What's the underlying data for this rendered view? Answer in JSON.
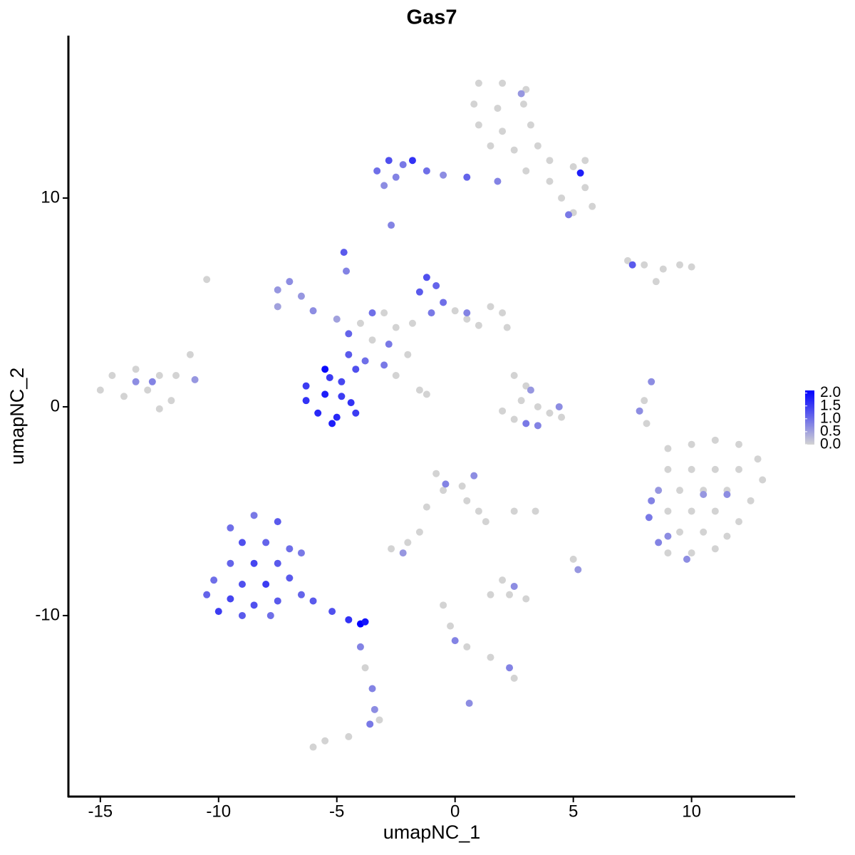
{
  "chart_data": {
    "type": "scatter",
    "title": "Gas7",
    "x_label": "umapNC_1",
    "y_label": "umapNC_2",
    "xlim": [
      -16.35,
      14.38
    ],
    "ylim": [
      -18.67,
      17.78
    ],
    "xticks": [
      -15,
      -10,
      -5,
      0,
      5,
      10
    ],
    "yticks": [
      -10,
      0,
      10
    ],
    "low_color": "#d3d3d3",
    "high_color": "#0000ff",
    "colorbar_lim": [
      0,
      2.1
    ],
    "colorbar_ticks": [
      {
        "value": 0,
        "label": "0.0"
      },
      {
        "value": 0.5,
        "label": "0.5"
      },
      {
        "value": 1,
        "label": "1.0"
      },
      {
        "value": 1.5,
        "label": "1.5"
      },
      {
        "value": 2,
        "label": "2.0"
      }
    ],
    "x": [
      1,
      2,
      3,
      0.8,
      1.8,
      2.9,
      3.2,
      1,
      2,
      1.5,
      2.5,
      3.5,
      4,
      5,
      5.5,
      3,
      4,
      4.5,
      5.5,
      5.8,
      5,
      1.8,
      2.8,
      5.3,
      4.8,
      -3.3,
      -2.8,
      -2.2,
      -1.8,
      -2.5,
      -1.2,
      -0.5,
      0.5,
      -3,
      -2.7,
      7.3,
      8,
      8.8,
      9.5,
      10,
      8.5,
      7.5,
      -15,
      -14.5,
      -14,
      -13.5,
      -13,
      -12.5,
      -12,
      -11.8,
      -11.2,
      -12.5,
      -13.5,
      -12.8,
      -11,
      -10.5,
      -7.5,
      -7,
      -6.5,
      -7.5,
      -6,
      -5,
      -4,
      -3,
      -2.5,
      -3.5,
      -2,
      -1.8,
      0,
      0.5,
      1.5,
      2,
      2.2,
      1,
      -2.5,
      -1.5,
      -1.2,
      -3,
      -3.5,
      -4.5,
      -2.8,
      -1.2,
      -1.5,
      -0.8,
      -0.5,
      -1,
      0.5,
      -4.7,
      -4.6,
      -4.5,
      -4.2,
      -3.8,
      -6.3,
      -6.3,
      -5.8,
      -5.5,
      -5,
      -4.8,
      -4.4,
      -5.3,
      -4.8,
      -5.5,
      -4.2,
      -5.2,
      2.5,
      3,
      2.8,
      2,
      3.5,
      4,
      4.4,
      3,
      3.5,
      2.5,
      3.2,
      4.5,
      8.3,
      8,
      7.8,
      8.1,
      9,
      10,
      11,
      12,
      12.8,
      9,
      10,
      11,
      12,
      13,
      9.5,
      10.5,
      11.5,
      12.5,
      9,
      10,
      11,
      12,
      9.5,
      10.5,
      11.5,
      9,
      10,
      11,
      8.3,
      8.2,
      8.6,
      8.6,
      9,
      10.5,
      11.5,
      9.8,
      -0.8,
      -0.5,
      0.3,
      0.5,
      1,
      1.3,
      0.8,
      -0.4,
      -1.5,
      -2,
      -2.7,
      -2.2,
      2.5,
      -1.2,
      -9.5,
      -8.5,
      -7.5,
      -9,
      -8,
      -7,
      -9.5,
      -8.5,
      -7.5,
      -10.2,
      -9,
      -8,
      -7,
      -10.5,
      -9.5,
      -8.5,
      -7.5,
      -6.5,
      -10,
      -9,
      -7.8,
      -6,
      -5.2,
      -4.5,
      -4,
      -3.8,
      -6.5,
      -3.5,
      -3.4,
      -3.6,
      -3.2,
      -4,
      -3.8,
      1.5,
      2.3,
      3,
      2.5,
      2,
      -0.5,
      -0.2,
      0,
      0.5,
      1.5,
      2.3,
      2.5,
      0.6,
      5,
      5.2,
      3.4,
      -6,
      -5.5,
      -4.5
    ],
    "y": [
      15.5,
      15.5,
      15.2,
      14.5,
      14.3,
      14.5,
      13.5,
      13.5,
      13.2,
      12.5,
      12.3,
      12.5,
      11.8,
      11.5,
      11.8,
      11.3,
      10.8,
      10,
      10.5,
      9.6,
      9.3,
      10.8,
      15,
      11.2,
      9.2,
      11.3,
      11.8,
      11.6,
      11.8,
      11,
      11.3,
      11.1,
      11,
      10.6,
      8.7,
      7,
      6.8,
      6.6,
      6.8,
      6.7,
      6,
      6.8,
      0.8,
      1.5,
      0.5,
      1.8,
      0.8,
      1.5,
      0.3,
      1.5,
      2.5,
      -0.1,
      1.2,
      1.2,
      1.3,
      6.1,
      5.6,
      6,
      5.3,
      4.8,
      4.6,
      4.2,
      4,
      4.5,
      3.8,
      3.2,
      2.5,
      4,
      4.6,
      4.2,
      4.8,
      4.5,
      3.8,
      3.9,
      1.5,
      0.8,
      0.6,
      2,
      4.5,
      3.5,
      3,
      6.2,
      5.5,
      5.8,
      5,
      4.5,
      4.5,
      7.4,
      6.5,
      2.5,
      1.8,
      2.2,
      1,
      0.3,
      -0.3,
      0.6,
      -0.5,
      0.5,
      0.2,
      1.4,
      1.2,
      1.8,
      -0.3,
      -0.8,
      1.5,
      1,
      0.3,
      -0.2,
      0,
      -0.3,
      0,
      -0.8,
      -0.9,
      -0.6,
      0.8,
      -0.5,
      1.2,
      0.3,
      -0.2,
      -0.8,
      -2,
      -1.8,
      -1.6,
      -1.8,
      -2.5,
      -3,
      -3,
      -3,
      -3,
      -3.5,
      -4,
      -4,
      -4,
      -4.5,
      -5,
      -5,
      -5,
      -5.5,
      -6,
      -6,
      -6.2,
      -7,
      -7,
      -6.8,
      -4.5,
      -5.3,
      -4,
      -6.5,
      -6.2,
      -4.2,
      -4.2,
      -7.3,
      -3.2,
      -4,
      -3.8,
      -4.5,
      -5,
      -5.5,
      -3.3,
      -3.7,
      -6,
      -6.5,
      -6.8,
      -7,
      -5,
      -4.8,
      -5.8,
      -5.2,
      -5.5,
      -6.5,
      -6.5,
      -6.8,
      -7.5,
      -7.5,
      -7.5,
      -8.3,
      -8.5,
      -8.5,
      -8.2,
      -9,
      -9.2,
      -9.5,
      -9.3,
      -9,
      -9.8,
      -10,
      -10,
      -9.3,
      -9.8,
      -10.2,
      -10.4,
      -10.3,
      -7,
      -13.5,
      -14.5,
      -15.2,
      -15,
      -11.5,
      -12.5,
      -9,
      -9,
      -9.2,
      -8.6,
      -8.3,
      -9.5,
      -10.5,
      -11.2,
      -11.5,
      -12,
      -12.5,
      -13,
      -14.2,
      -7.3,
      -7.8,
      -5,
      -16.3,
      -16,
      -15.8
    ],
    "values": [
      0,
      0,
      0,
      0,
      0,
      0,
      0,
      0,
      0,
      0,
      0,
      0,
      0,
      0,
      0,
      0,
      0,
      0,
      0,
      0,
      0,
      0.8,
      0.6,
      1.8,
      0.9,
      1,
      1.3,
      0.9,
      1.6,
      0.8,
      1,
      0.7,
      1.1,
      0.7,
      0.8,
      0,
      0,
      0,
      0,
      0,
      0,
      1.2,
      0,
      0,
      0,
      0,
      0,
      0,
      0,
      0,
      0,
      0,
      0.7,
      0.8,
      0.6,
      0,
      0.6,
      0.7,
      0.6,
      0.5,
      0.7,
      0.5,
      0,
      0,
      0,
      0,
      0,
      0,
      0,
      0,
      0,
      0,
      0,
      0,
      0,
      0,
      0,
      0.9,
      1,
      1.1,
      0.9,
      1.3,
      1.2,
      1.1,
      1,
      0.9,
      0.8,
      1.2,
      0.8,
      1.2,
      1.3,
      1,
      1.5,
      1.6,
      1.7,
      1.8,
      1.7,
      1.5,
      1.6,
      1.5,
      1.4,
      2,
      1.5,
      1.8,
      0,
      0,
      0,
      0,
      0,
      0,
      0.7,
      0.9,
      0.8,
      0,
      0.6,
      0,
      0.7,
      0,
      0.7,
      0,
      0,
      0,
      0,
      0,
      0,
      0,
      0,
      0,
      0,
      0,
      0,
      0,
      0,
      0,
      0,
      0,
      0,
      0,
      0,
      0,
      0,
      0,
      0,
      0,
      0.8,
      0.9,
      0.6,
      0.8,
      0.7,
      0.6,
      0.7,
      0.7,
      0,
      0,
      0,
      0,
      0,
      0,
      0.7,
      0.8,
      0,
      0,
      0,
      0.6,
      0,
      0,
      1,
      0.9,
      1.2,
      1.3,
      1.1,
      1,
      1.1,
      1.4,
      1.2,
      1,
      1.3,
      1.5,
      1.2,
      1.1,
      1.4,
      1.3,
      1.2,
      1.1,
      1.5,
      1.2,
      1,
      1.2,
      1.3,
      1.6,
      2.1,
      1.9,
      0.9,
      0.8,
      0.7,
      0.9,
      0,
      0.8,
      0,
      0,
      0,
      0,
      0.7,
      0,
      0,
      0,
      0.8,
      0,
      0,
      0.8,
      0,
      0.7,
      0,
      0.6,
      0,
      0,
      0,
      0
    ]
  }
}
